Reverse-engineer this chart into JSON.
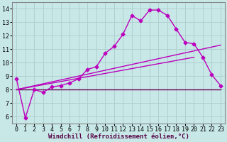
{
  "xlabel": "Windchill (Refroidissement éolien,°C)",
  "bg_color": "#c8e8e8",
  "grid_color": "#b0d0d0",
  "line_color_main": "#bb00bb",
  "line_color_flat": "#660055",
  "xlim": [
    -0.5,
    23.5
  ],
  "ylim": [
    5.5,
    14.5
  ],
  "yticks": [
    6,
    7,
    8,
    9,
    10,
    11,
    12,
    13,
    14
  ],
  "xticks": [
    0,
    1,
    2,
    3,
    4,
    5,
    6,
    7,
    8,
    9,
    10,
    11,
    12,
    13,
    14,
    15,
    16,
    17,
    18,
    19,
    20,
    21,
    22,
    23
  ],
  "series_main": {
    "x": [
      0,
      1,
      2,
      3,
      4,
      5,
      6,
      7,
      8,
      9,
      10,
      11,
      12,
      13,
      14,
      15,
      16,
      17,
      18,
      19,
      20,
      21,
      22,
      23
    ],
    "y": [
      8.8,
      5.9,
      8.0,
      7.8,
      8.2,
      8.3,
      8.5,
      8.8,
      9.5,
      9.7,
      10.7,
      11.2,
      12.1,
      13.5,
      13.1,
      13.9,
      13.9,
      13.5,
      12.5,
      11.5,
      11.4,
      10.4,
      9.1,
      8.3
    ]
  },
  "series_flat": {
    "x": [
      0,
      23
    ],
    "y": [
      8.0,
      8.0
    ]
  },
  "series_rise1": {
    "x": [
      0,
      23
    ],
    "y": [
      8.0,
      11.3
    ]
  },
  "series_rise2": {
    "x": [
      0,
      20
    ],
    "y": [
      8.0,
      10.4
    ]
  },
  "marker": "D",
  "markersize": 2.5,
  "linewidth": 1.0,
  "xlabel_fontsize": 6.5,
  "tick_fontsize": 6
}
